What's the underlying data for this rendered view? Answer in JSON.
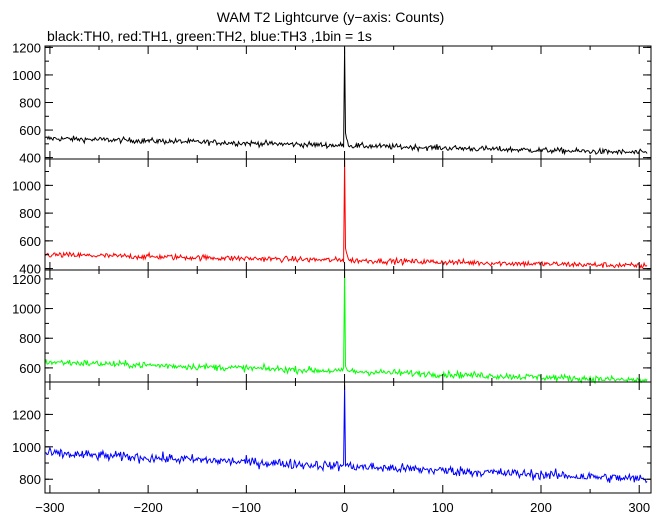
{
  "title": "WAM T2 Lightcurve (y−axis: Counts)",
  "subtitle": "black:TH0, red:TH1, green:TH2, blue:TH3 ,1bin = 1s",
  "chart_data": {
    "type": "line",
    "xlim": [
      -305,
      312
    ],
    "x_ticks": [
      -300,
      -200,
      -100,
      0,
      100,
      200,
      300
    ],
    "x_tick_labels": [
      "−300",
      "−200",
      "−100",
      "0",
      "100",
      "200",
      "300"
    ],
    "panels": [
      {
        "color": "#000000",
        "ylim": [
          390,
          1210
        ],
        "y_ticks": [
          400,
          600,
          800,
          1000,
          1200
        ],
        "baseline_start": 540,
        "baseline_end": 435,
        "noise": 20,
        "peak_x": 0,
        "peak_y": 1200,
        "post_peak_y": 600
      },
      {
        "color": "#ff0000",
        "ylim": [
          390,
          1190
        ],
        "y_ticks": [
          400,
          600,
          800,
          1000
        ],
        "baseline_start": 500,
        "baseline_end": 420,
        "noise": 20,
        "peak_x": 0,
        "peak_y": 1180,
        "post_peak_y": 580
      },
      {
        "color": "#00ff00",
        "ylim": [
          505,
          1260
        ],
        "y_ticks": [
          600,
          800,
          1000,
          1200
        ],
        "baseline_start": 640,
        "baseline_end": 515,
        "noise": 22,
        "peak_x": 0,
        "peak_y": 1250,
        "post_peak_y": 620
      },
      {
        "color": "#0000ff",
        "ylim": [
          715,
          1400
        ],
        "y_ticks": [
          800,
          1000,
          1200
        ],
        "baseline_start": 960,
        "baseline_end": 800,
        "noise": 30,
        "peak_x": 0,
        "peak_y": 1380,
        "post_peak_y": 900
      }
    ]
  }
}
